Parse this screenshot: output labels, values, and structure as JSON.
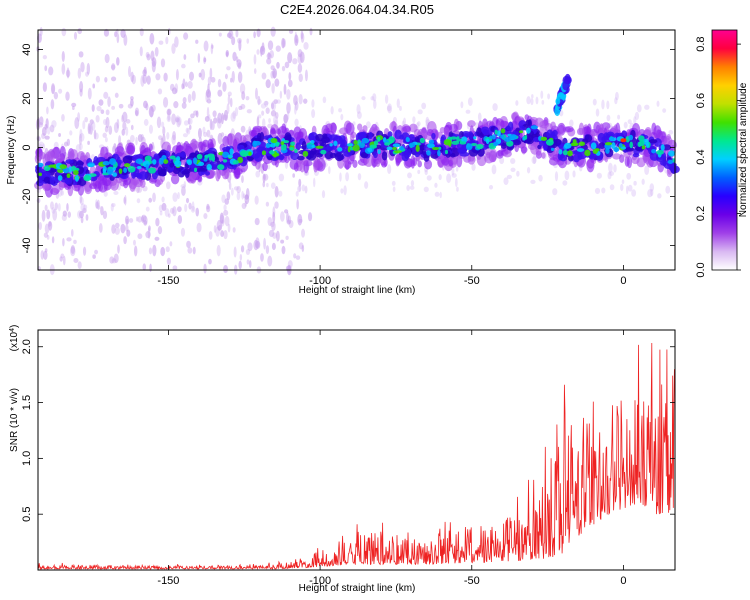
{
  "title": "C2E4.2026.064.04.34.R05",
  "chart_data": [
    {
      "type": "heatmap",
      "xlabel": "Height of straight line (km)",
      "ylabel": "Frequency (Hz)",
      "xlim": [
        -193,
        17
      ],
      "ylim": [
        -50,
        48
      ],
      "x_ticks": [
        -150,
        -100,
        -50,
        0
      ],
      "x_tick_labels": [
        "-150",
        "-100",
        "-50",
        "0"
      ],
      "y_ticks": [
        -40,
        -20,
        0,
        20,
        40
      ],
      "y_tick_labels": [
        "-40",
        "-20",
        "0",
        "20",
        "40"
      ],
      "colorbar": {
        "label": "Normalized spectral amplitude",
        "range": [
          0,
          0.85
        ],
        "ticks": [
          0,
          0.2,
          0.4,
          0.6,
          0.8
        ],
        "tick_labels": [
          "0.0",
          "0.2",
          "0.4",
          "0.6",
          "0.8"
        ],
        "colormap": [
          "#ffffff",
          "#d9b8f2",
          "#a040e8",
          "#6a00e8",
          "#2800ff",
          "#0060ff",
          "#00d0ff",
          "#00e890",
          "#40e000",
          "#c0e000",
          "#ffd000",
          "#ff8000",
          "#ff0040",
          "#ff0090"
        ]
      },
      "ridges": [
        {
          "name": "main",
          "x": [
            -193,
            -180,
            -165,
            -150,
            -135,
            -120,
            -100,
            -85,
            -75,
            -65,
            -50,
            -40,
            -30,
            -20,
            -10,
            0,
            10,
            17
          ],
          "freq_hz": [
            -10,
            -10,
            -8,
            -7,
            -6,
            0,
            0,
            1,
            1,
            0,
            2,
            4,
            6,
            0,
            0,
            2,
            0,
            -5
          ]
        },
        {
          "name": "branch",
          "x": [
            -22,
            -20,
            -18
          ],
          "freq_hz": [
            16,
            22,
            28
          ]
        }
      ],
      "grid": false
    },
    {
      "type": "line",
      "xlabel": "Height of straight line (km)",
      "ylabel": "SNR (10 * v/v)",
      "y_scale_note": "(x10^4)",
      "xlim": [
        -193,
        17
      ],
      "ylim": [
        0,
        2.15
      ],
      "x_ticks": [
        -150,
        -100,
        -50,
        0
      ],
      "x_tick_labels": [
        "-150",
        "-100",
        "-50",
        "0"
      ],
      "y_ticks": [
        0.5,
        1.0,
        1.5,
        2.0
      ],
      "y_tick_labels": [
        "0.5",
        "1.0",
        "1.5",
        "2.0"
      ],
      "series": [
        {
          "color": "#ee2222",
          "envelope_x": [
            -193,
            -160,
            -130,
            -115,
            -105,
            -95,
            -85,
            -75,
            -65,
            -55,
            -45,
            -35,
            -28,
            -24,
            -20,
            -15,
            -10,
            -5,
            0,
            5,
            10,
            15,
            17
          ],
          "envelope_y": [
            0.05,
            0.04,
            0.04,
            0.05,
            0.12,
            0.2,
            0.35,
            0.35,
            0.3,
            0.35,
            0.4,
            0.5,
            0.7,
            1.3,
            1.5,
            1.5,
            1.3,
            1.4,
            1.6,
            1.5,
            1.7,
            1.8,
            1.9
          ],
          "baseline_y": [
            0.01,
            0.01,
            0.01,
            0.01,
            0.02,
            0.04,
            0.05,
            0.05,
            0.05,
            0.06,
            0.07,
            0.08,
            0.1,
            0.1,
            0.15,
            0.3,
            0.4,
            0.5,
            0.55,
            0.6,
            0.5,
            0.5,
            0.5
          ]
        }
      ],
      "grid": false
    }
  ]
}
